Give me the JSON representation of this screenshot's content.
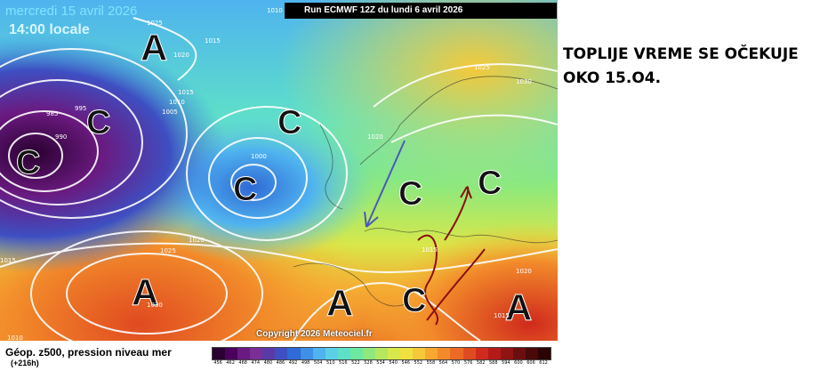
{
  "header": {
    "date": "mercredi 15 avril 2026",
    "time": "14:00 locale",
    "run": "Run ECMWF 12Z du lundi 6 avril 2026"
  },
  "note": {
    "line1": "TOPLIJE VREME SE OČEKUJE",
    "line2": "OKO 15.O4."
  },
  "copyright": "Copyright 2026 Meteociel.fr",
  "legend": {
    "title": "Géop. z500, pression niveau mer",
    "subtitle": "(+216h)",
    "colors": [
      "#2a0030",
      "#4b005e",
      "#6a1a80",
      "#7a2f96",
      "#5a3aa8",
      "#3e4fc2",
      "#2f6ad6",
      "#3e8fe6",
      "#4fb3ef",
      "#5ccfe8",
      "#5ee0c8",
      "#6ee8a0",
      "#8ee87c",
      "#b6e85e",
      "#d8e84a",
      "#f0e040",
      "#f6c83a",
      "#f6a830",
      "#f28a2a",
      "#ec6a24",
      "#e04a20",
      "#d02a1c",
      "#b41a18",
      "#901414",
      "#6a0e10",
      "#4a0808",
      "#2a0404"
    ],
    "ticks": [
      "456",
      "462",
      "468",
      "474",
      "480",
      "486",
      "492",
      "498",
      "504",
      "510",
      "516",
      "522",
      "528",
      "534",
      "540",
      "546",
      "552",
      "558",
      "564",
      "570",
      "576",
      "582",
      "588",
      "594",
      "600",
      "606",
      "612"
    ]
  },
  "pressure_systems": [
    {
      "label": "A"
    },
    {
      "label": "C"
    },
    {
      "label": "C"
    },
    {
      "label": "C"
    },
    {
      "label": "C"
    },
    {
      "label": "C"
    },
    {
      "label": "C"
    },
    {
      "label": "A"
    },
    {
      "label": "A"
    },
    {
      "label": "C"
    },
    {
      "label": "A"
    }
  ],
  "isobar_labels": [
    "1010",
    "1025",
    "1015",
    "1020",
    "1015",
    "1010",
    "1005",
    "1000",
    "995",
    "990",
    "985",
    "1020",
    "1025",
    "1020",
    "1015",
    "1025",
    "1030",
    "1015",
    "1010",
    "1020",
    "1015",
    "1030",
    "1015",
    "1005",
    "990",
    "985"
  ]
}
